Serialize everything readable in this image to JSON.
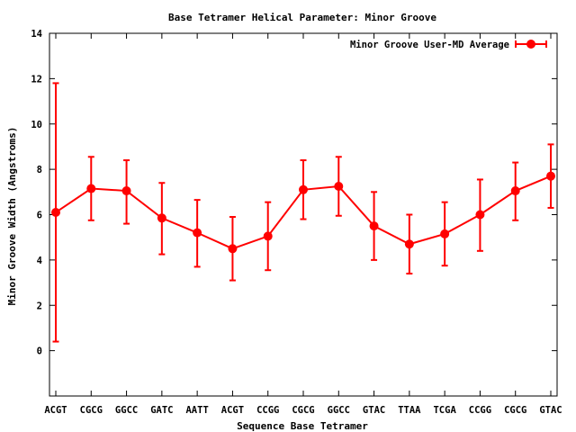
{
  "chart_data": {
    "type": "line",
    "title": "Base Tetramer Helical Parameter: Minor Groove",
    "xlabel": "Sequence Base Tetramer",
    "ylabel": "Minor Groove Width (Angstroms)",
    "ylim": [
      -2,
      14
    ],
    "yticks": [
      0,
      2,
      4,
      6,
      8,
      10,
      12,
      14
    ],
    "grid": false,
    "legend_position": "top-right",
    "categories": [
      "ACGT",
      "CGCG",
      "GGCC",
      "GATC",
      "AATT",
      "ACGT",
      "CCGG",
      "CGCG",
      "GGCC",
      "GTAC",
      "TTAA",
      "TCGA",
      "CCGG",
      "CGCG",
      "GTAC"
    ],
    "series": [
      {
        "name": "Minor Groove User-MD Average",
        "color": "#ff0000",
        "values": [
          6.1,
          7.15,
          7.05,
          5.85,
          5.2,
          4.5,
          5.05,
          7.1,
          7.25,
          5.5,
          4.7,
          5.15,
          6.0,
          7.05,
          7.7
        ],
        "error_low": [
          0.4,
          5.75,
          5.6,
          4.25,
          3.7,
          3.1,
          3.55,
          5.8,
          5.95,
          4.0,
          3.4,
          3.75,
          4.4,
          5.75,
          6.3
        ],
        "error_high": [
          11.8,
          8.55,
          8.4,
          7.4,
          6.65,
          5.9,
          6.55,
          8.4,
          8.55,
          7.0,
          6.0,
          6.55,
          7.55,
          8.3,
          9.1
        ]
      }
    ]
  }
}
